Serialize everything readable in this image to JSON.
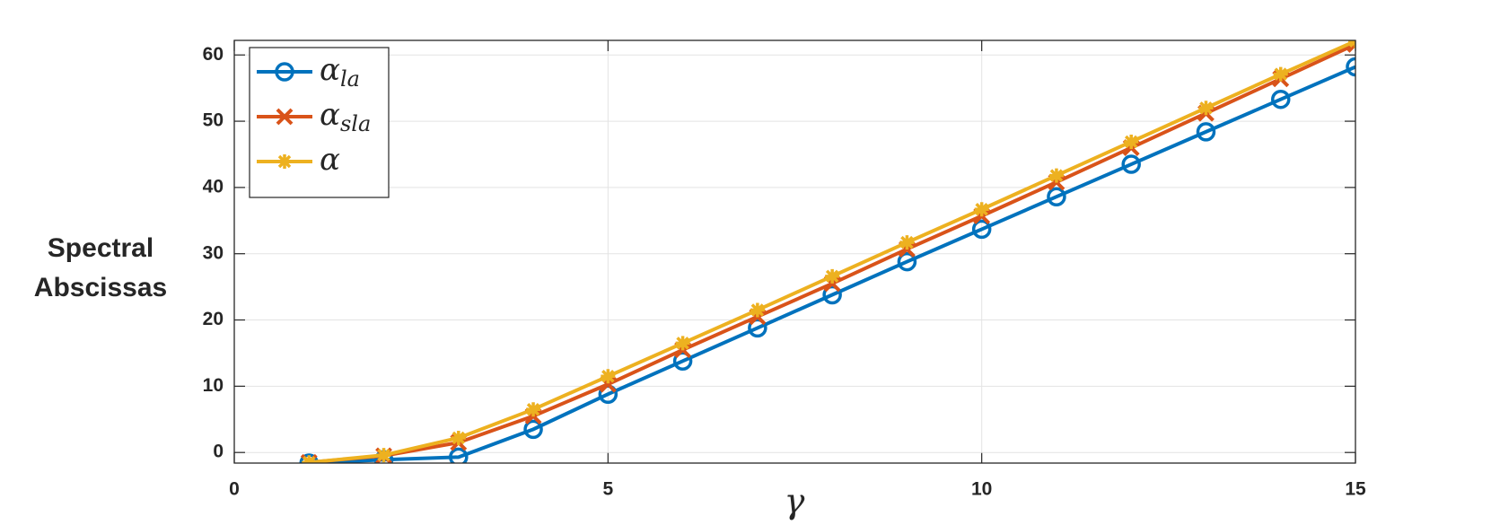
{
  "chart_data": {
    "type": "line",
    "x_label": "γ",
    "y_label": "Spectral Abscissas",
    "x": [
      1,
      2,
      3,
      4,
      5,
      6,
      7,
      8,
      9,
      10,
      11,
      12,
      13,
      14,
      15
    ],
    "series": [
      {
        "name": "αla",
        "color": "#0072bd",
        "marker": "circle",
        "values": [
          -1.6,
          -1.1,
          -0.7,
          3.5,
          8.8,
          13.8,
          18.8,
          23.8,
          28.8,
          33.7,
          38.6,
          43.5,
          48.4,
          53.3,
          58.2
        ]
      },
      {
        "name": "αsla",
        "color": "#d95319",
        "marker": "x",
        "values": [
          -1.5,
          -0.5,
          1.5,
          5.5,
          10.3,
          15.5,
          20.5,
          25.5,
          30.7,
          35.7,
          40.8,
          46.0,
          51.2,
          56.4,
          61.6
        ]
      },
      {
        "name": "α",
        "color": "#edb120",
        "marker": "star",
        "values": [
          -1.5,
          -0.4,
          2.2,
          6.5,
          11.5,
          16.5,
          21.5,
          26.6,
          31.7,
          36.7,
          41.8,
          46.9,
          52.0,
          57.1,
          62.1
        ]
      }
    ],
    "xlim": [
      0,
      15
    ],
    "ylim": [
      -1.6,
      62.2
    ],
    "xticks": [
      0,
      5,
      10,
      15
    ],
    "yticks": [
      0,
      10,
      20,
      30,
      40,
      50,
      60
    ],
    "grid": true,
    "legend": "upper left"
  }
}
